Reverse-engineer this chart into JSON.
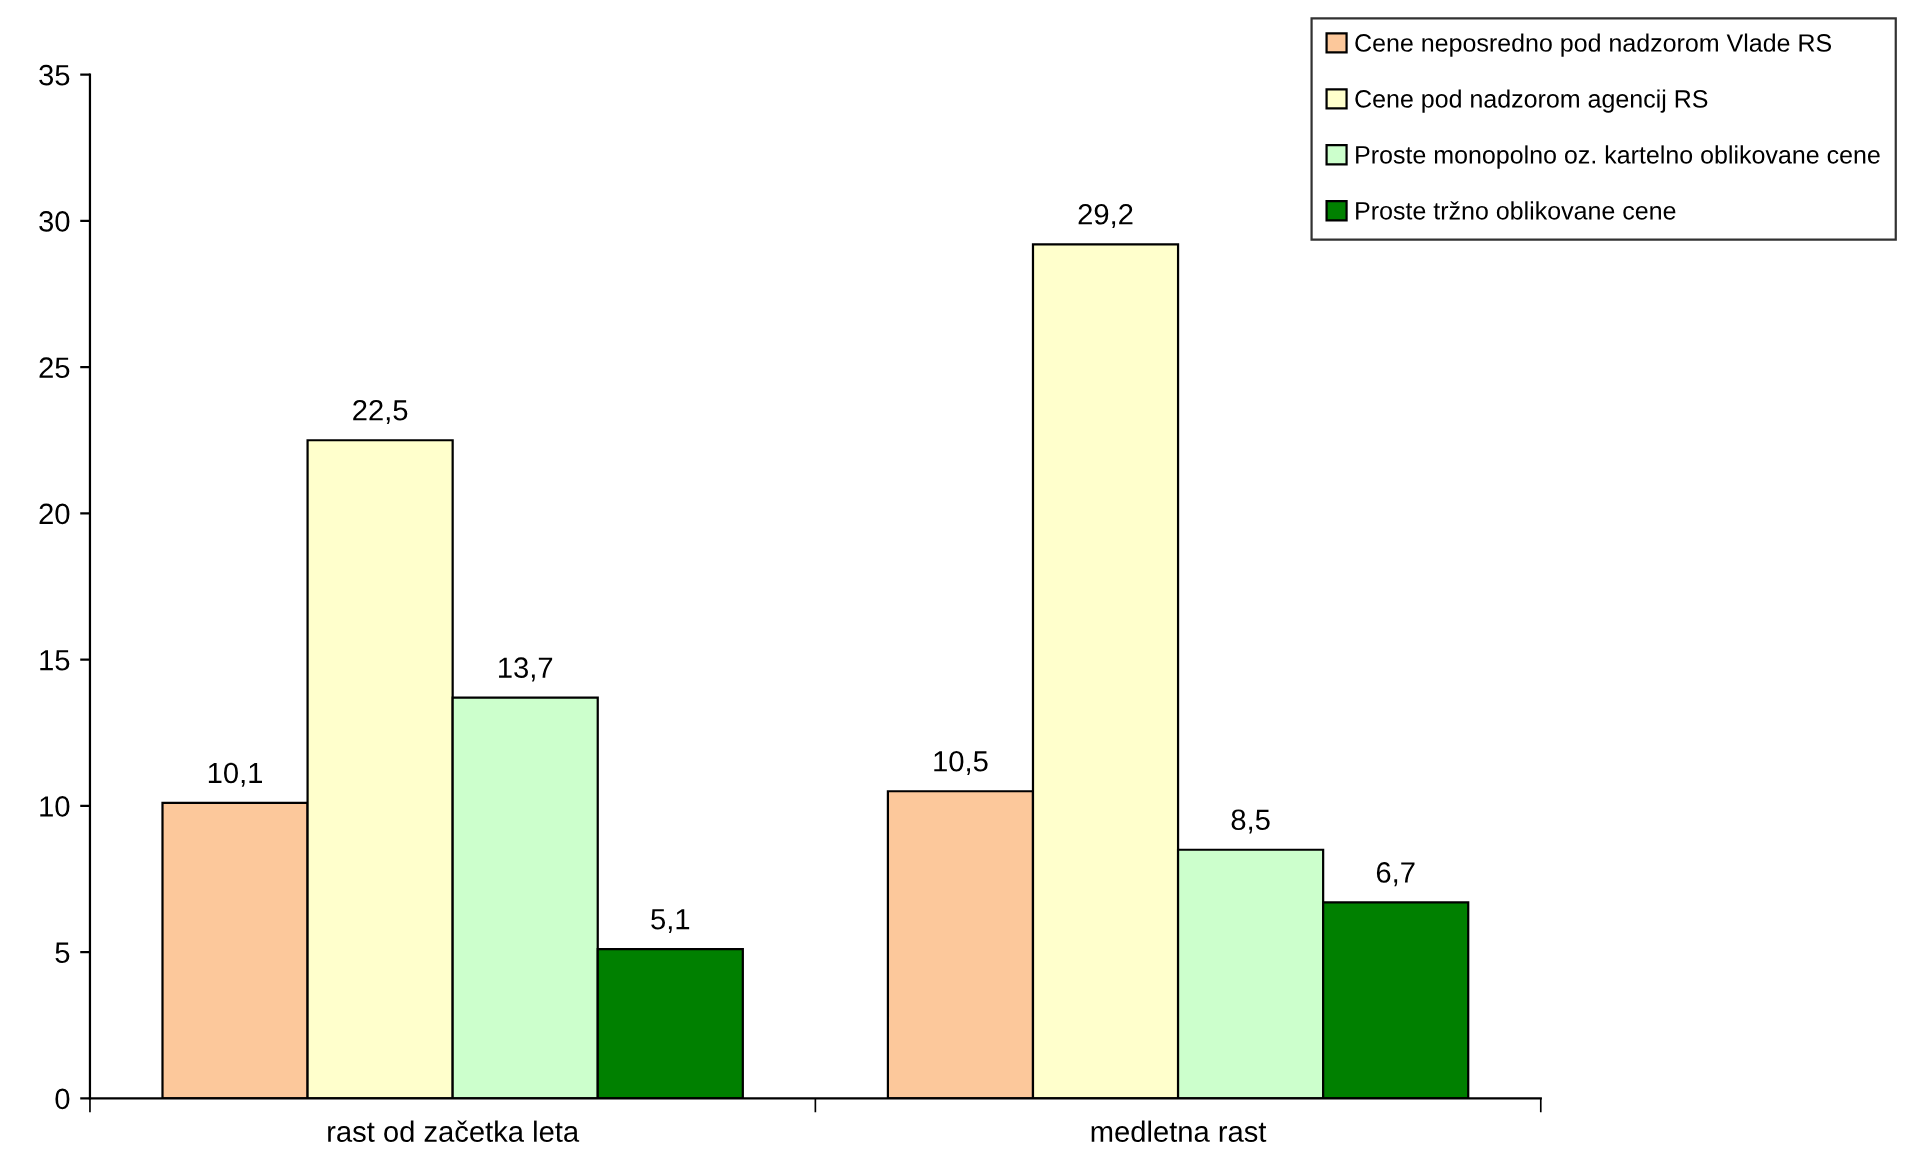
{
  "chart_data": {
    "type": "bar",
    "categories": [
      "rast od začetka leta",
      "medletna rast"
    ],
    "series": [
      {
        "name": "Cene neposredno pod nadzorom Vlade RS",
        "color": "#fcc89b",
        "values": [
          10.1,
          10.5
        ],
        "value_labels": [
          "10,1",
          "10,5"
        ]
      },
      {
        "name": "Cene pod nadzorom agencij RS",
        "color": "#ffffcc",
        "values": [
          22.5,
          29.2
        ],
        "value_labels": [
          "22,5",
          "29,2"
        ]
      },
      {
        "name": "Proste monopolno oz. kartelno oblikovane cene",
        "color": "#ccffcc",
        "values": [
          13.7,
          8.5
        ],
        "value_labels": [
          "13,7",
          "8,5"
        ]
      },
      {
        "name": "Proste tržno oblikovane cene",
        "color": "#008000",
        "values": [
          5.1,
          6.7
        ],
        "value_labels": [
          "5,1",
          "6,7"
        ]
      }
    ],
    "ylim": [
      0,
      35
    ],
    "yticks": [
      0,
      5,
      10,
      15,
      20,
      25,
      30,
      35
    ],
    "grid": false,
    "legend": "top right"
  }
}
